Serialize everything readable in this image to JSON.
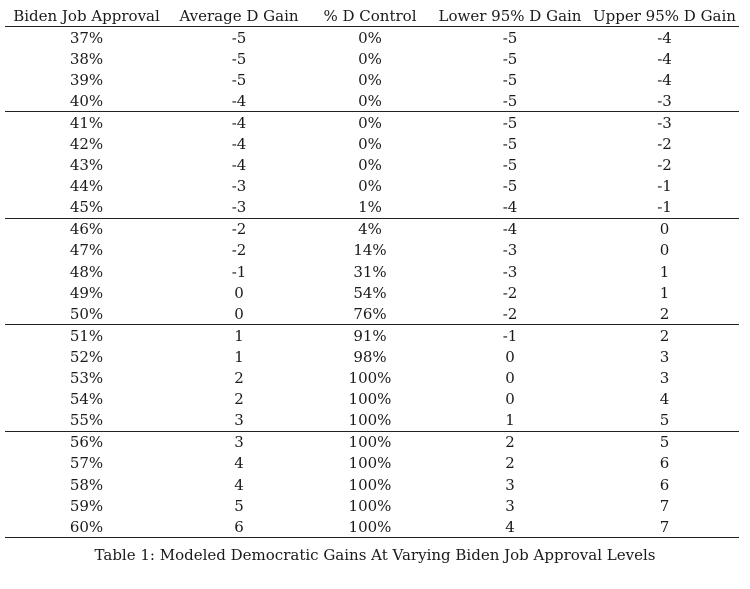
{
  "table": {
    "columns": [
      "Biden Job Approval",
      "Average D Gain",
      "% D Control",
      "Lower 95% D Gain",
      "Upper 95% D Gain"
    ],
    "groups": [
      [
        [
          "37%",
          "-5",
          "0%",
          "-5",
          "-4"
        ],
        [
          "38%",
          "-5",
          "0%",
          "-5",
          "-4"
        ],
        [
          "39%",
          "-5",
          "0%",
          "-5",
          "-4"
        ],
        [
          "40%",
          "-4",
          "0%",
          "-5",
          "-3"
        ]
      ],
      [
        [
          "41%",
          "-4",
          "0%",
          "-5",
          "-3"
        ],
        [
          "42%",
          "-4",
          "0%",
          "-5",
          "-2"
        ],
        [
          "43%",
          "-4",
          "0%",
          "-5",
          "-2"
        ],
        [
          "44%",
          "-3",
          "0%",
          "-5",
          "-1"
        ],
        [
          "45%",
          "-3",
          "1%",
          "-4",
          "-1"
        ]
      ],
      [
        [
          "46%",
          "-2",
          "4%",
          "-4",
          "0"
        ],
        [
          "47%",
          "-2",
          "14%",
          "-3",
          "0"
        ],
        [
          "48%",
          "-1",
          "31%",
          "-3",
          "1"
        ],
        [
          "49%",
          "0",
          "54%",
          "-2",
          "1"
        ],
        [
          "50%",
          "0",
          "76%",
          "-2",
          "2"
        ]
      ],
      [
        [
          "51%",
          "1",
          "91%",
          "-1",
          "2"
        ],
        [
          "52%",
          "1",
          "98%",
          "0",
          "3"
        ],
        [
          "53%",
          "2",
          "100%",
          "0",
          "3"
        ],
        [
          "54%",
          "2",
          "100%",
          "0",
          "4"
        ],
        [
          "55%",
          "3",
          "100%",
          "1",
          "5"
        ]
      ],
      [
        [
          "56%",
          "3",
          "100%",
          "2",
          "5"
        ],
        [
          "57%",
          "4",
          "100%",
          "2",
          "6"
        ],
        [
          "58%",
          "4",
          "100%",
          "3",
          "6"
        ],
        [
          "59%",
          "5",
          "100%",
          "3",
          "7"
        ],
        [
          "60%",
          "6",
          "100%",
          "4",
          "7"
        ]
      ]
    ]
  },
  "caption": "Table 1: Modeled Democratic Gains At Varying Biden Job Approval Levels"
}
